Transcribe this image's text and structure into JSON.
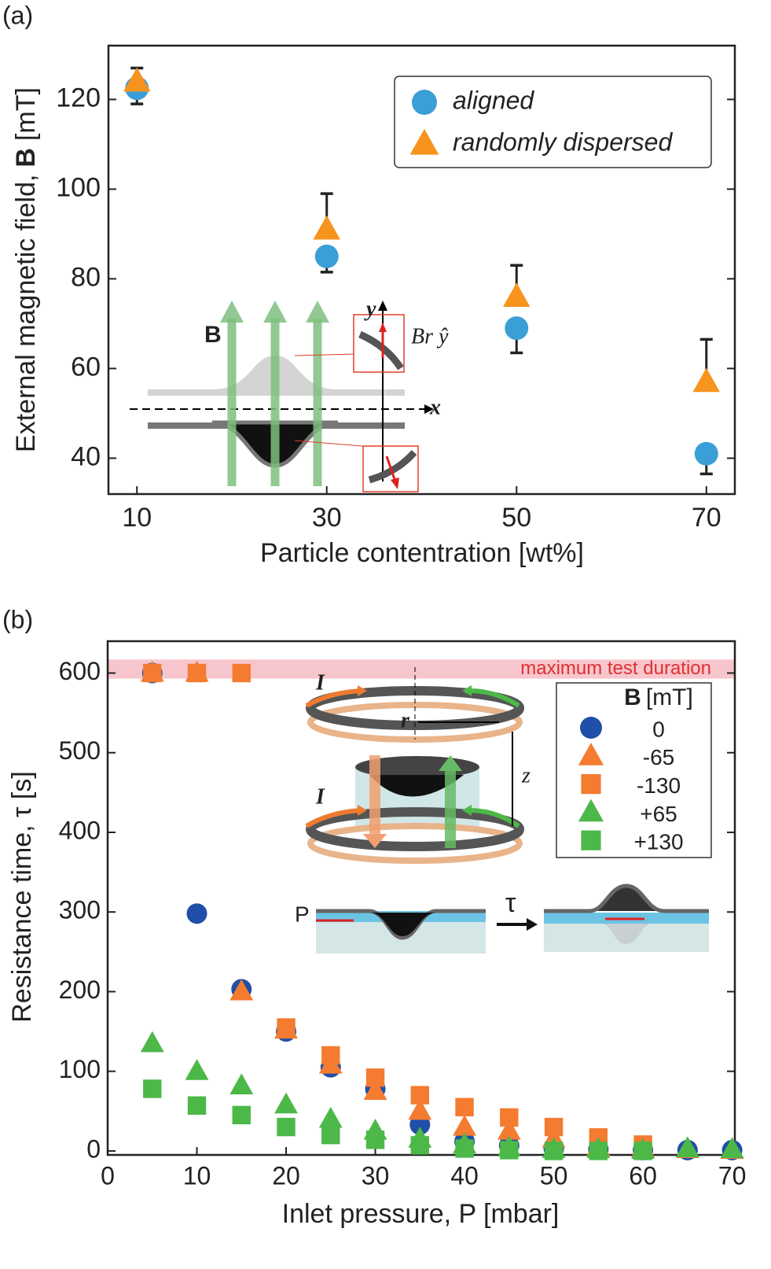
{
  "panel_labels": [
    "(a)",
    "(b)"
  ],
  "chart_data": [
    {
      "type": "scatter",
      "xlabel": "Particle contentration [wt%]",
      "ylabel_parts": [
        "External magnetic field,",
        "B",
        "[mT]"
      ],
      "x": [
        10,
        30,
        50,
        70
      ],
      "xlim": [
        7,
        73
      ],
      "ylim": [
        32,
        132
      ],
      "xticks": [
        10,
        30,
        50,
        70
      ],
      "yticks": [
        40,
        60,
        80,
        100,
        120
      ],
      "series": [
        {
          "name": "aligned",
          "color": "#3a9fd6",
          "marker": "circle",
          "values": [
            122.5,
            85,
            69,
            41
          ],
          "errors": [
            3.5,
            3.5,
            5.5,
            4.5
          ],
          "error_direction": "down"
        },
        {
          "name": "randomly dispersed",
          "color": "#f7941d",
          "marker": "triangle",
          "values": [
            124,
            91,
            76,
            57
          ],
          "errors": [
            3,
            8,
            7,
            9.5
          ],
          "error_direction": "up"
        }
      ],
      "legend": "upper right",
      "inset_labels": [
        "B",
        "y",
        "x",
        "Br ŷ"
      ]
    },
    {
      "type": "scatter",
      "xlabel": "Inlet pressure, P [mbar]",
      "ylabel": "Resistance time, τ [s]",
      "x": [
        5,
        10,
        15,
        20,
        25,
        30,
        35,
        40,
        45,
        50,
        55,
        60,
        65,
        70
      ],
      "xlim": [
        0,
        70.3
      ],
      "ylim": [
        -5,
        640
      ],
      "xticks": [
        0,
        10,
        20,
        30,
        40,
        50,
        60,
        70
      ],
      "yticks": [
        0,
        100,
        200,
        300,
        400,
        500,
        600
      ],
      "band": {
        "label": "maximum test duration",
        "range": [
          593,
          617
        ],
        "color": "#f7c6cc"
      },
      "legend_title_parts": [
        "B",
        "[mT]"
      ],
      "legend": "upper right",
      "series": [
        {
          "name": "0",
          "color": "#1f4fa8",
          "marker": "circle",
          "values": [
            600,
            298,
            203,
            150,
            105,
            78,
            33,
            12,
            7,
            3,
            2,
            1,
            1,
            1
          ]
        },
        {
          "name": "-65",
          "color": "#f47b30",
          "marker": "triangle",
          "values": [
            600,
            600,
            200,
            152,
            108,
            75,
            50,
            30,
            25,
            15,
            5,
            3,
            2,
            1
          ]
        },
        {
          "name": "-130",
          "color": "#f47b30",
          "marker": "square",
          "values": [
            600,
            600,
            600,
            155,
            120,
            92,
            70,
            55,
            42,
            30,
            17,
            8,
            null,
            null
          ]
        },
        {
          "name": "+65",
          "color": "#4cb848",
          "marker": "triangle",
          "values": [
            135,
            100,
            82,
            58,
            40,
            25,
            15,
            8,
            4,
            2,
            2,
            1,
            3,
            2
          ]
        },
        {
          "name": "+130",
          "color": "#4cb848",
          "marker": "square",
          "values": [
            78,
            57,
            45,
            30,
            20,
            14,
            7,
            3,
            1,
            0,
            0,
            0,
            null,
            null
          ]
        }
      ],
      "inset_labels": [
        "I",
        "r",
        "z",
        "I",
        "P",
        "τ"
      ]
    }
  ]
}
